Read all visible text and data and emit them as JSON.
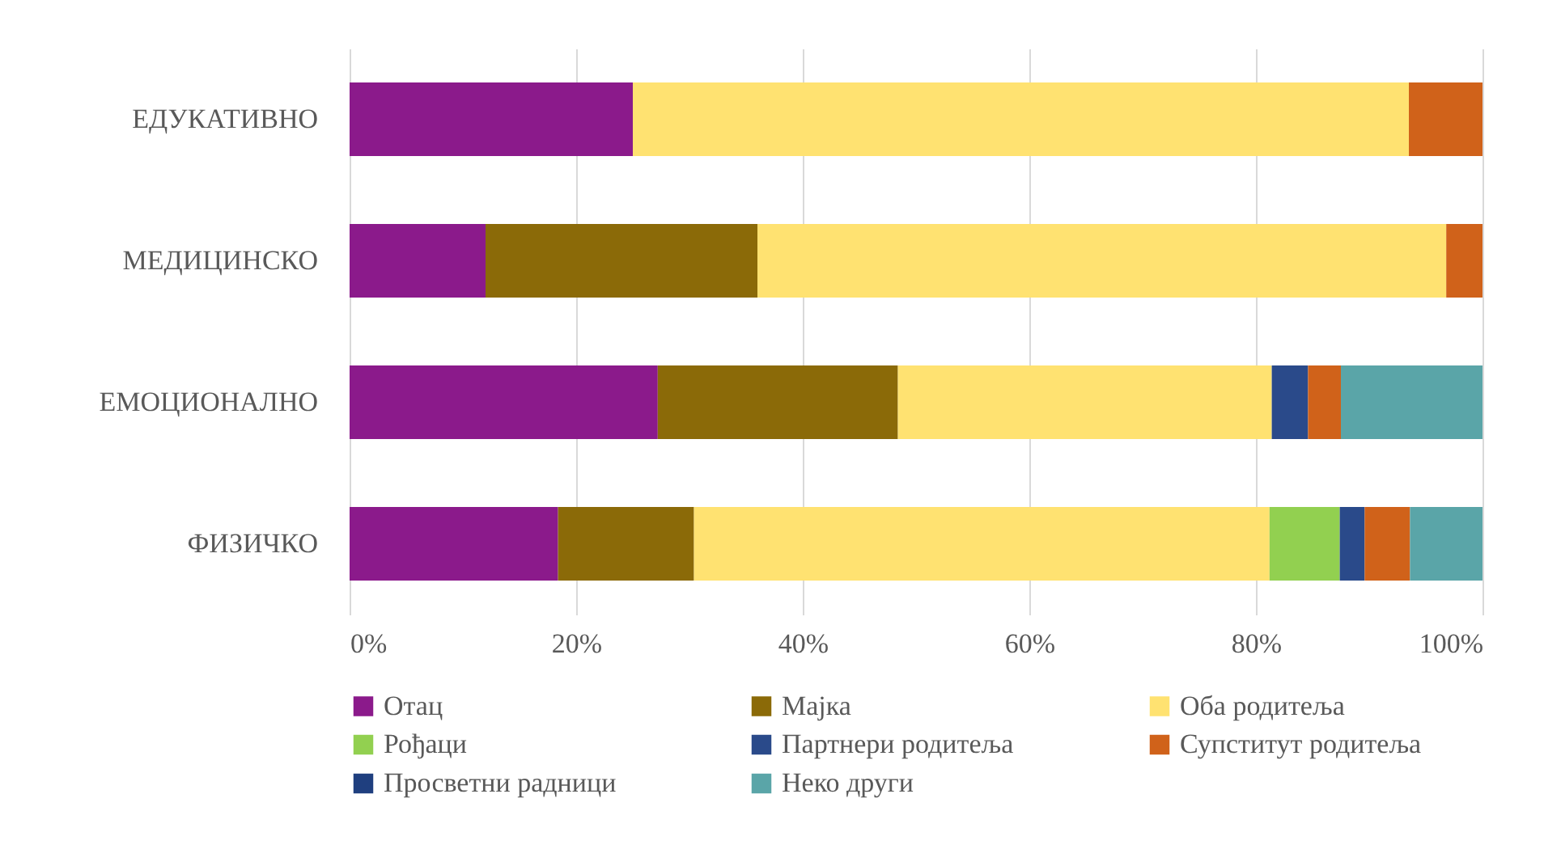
{
  "chart_data": {
    "type": "bar",
    "orientation": "horizontal",
    "stacked": true,
    "categories": [
      "ЕДУКАТИВНО",
      "МЕДИЦИНСКО",
      "ЕМОЦИОНАЛНО",
      "ФИЗИЧКО"
    ],
    "series": [
      {
        "name": "Отац",
        "color": "#8b1a8b",
        "values": [
          25,
          12,
          27.2,
          18.4
        ]
      },
      {
        "name": "Мајка",
        "color": "#8b6a08",
        "values": [
          null,
          24,
          21.2,
          12
        ]
      },
      {
        "name": "Оба родитеља",
        "color": "#ffe271",
        "values": [
          68.5,
          60.8,
          33,
          50.8
        ]
      },
      {
        "name": "Рођаци",
        "color": "#92d050",
        "values": [
          null,
          null,
          null,
          6.2
        ]
      },
      {
        "name": "Партнери родитеља",
        "color": "#2a4a8a",
        "values": [
          null,
          null,
          3.2,
          2.2
        ]
      },
      {
        "name": "Супститут родитеља",
        "color": "#d0621a",
        "values": [
          6.5,
          3.2,
          2.9,
          4
        ]
      },
      {
        "name": "Просветни радници",
        "color": "#1f3f7f",
        "values": [
          null,
          null,
          null,
          null
        ]
      },
      {
        "name": "Неко други",
        "color": "#5aa5a8",
        "values": [
          null,
          null,
          12.5,
          6.4
        ]
      }
    ],
    "xlim": [
      0,
      100
    ],
    "xticks": [
      {
        "value": 0,
        "label": "0%"
      },
      {
        "value": 20,
        "label": "20%"
      },
      {
        "value": 40,
        "label": "40%"
      },
      {
        "value": 60,
        "label": "60%"
      },
      {
        "value": 80,
        "label": "80%"
      },
      {
        "value": 100,
        "label": "100%"
      }
    ],
    "grid": "x",
    "legend": "bottom"
  }
}
